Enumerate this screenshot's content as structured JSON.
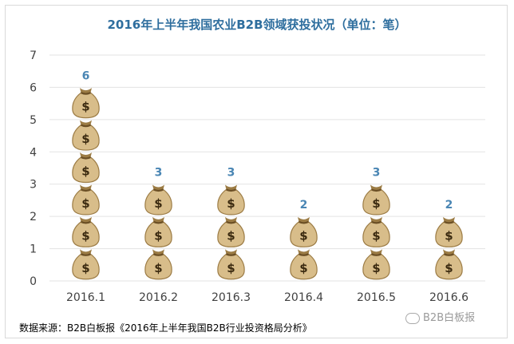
{
  "chart_data": {
    "type": "bar",
    "title": "2016年上半年我国农业B2B领域获投状况（单位：笔）",
    "categories": [
      "2016.1",
      "2016.2",
      "2016.3",
      "2016.4",
      "2016.5",
      "2016.6"
    ],
    "values": [
      6,
      3,
      3,
      2,
      3,
      2
    ],
    "ylim": [
      0,
      7
    ],
    "yticks": [
      0,
      1,
      2,
      3,
      4,
      5,
      6,
      7
    ],
    "grid": true,
    "legend": "none",
    "bar_style": "stacked money bag icons",
    "label_color": "#4a86b4"
  },
  "footer": {
    "source": "数据来源：B2B白板报《2016年上半年我国B2B行业投资格局分析》",
    "watermark": "B2B白板报"
  },
  "icons": {
    "bag": "money-bag-icon",
    "watermark": "wechat-icon"
  }
}
